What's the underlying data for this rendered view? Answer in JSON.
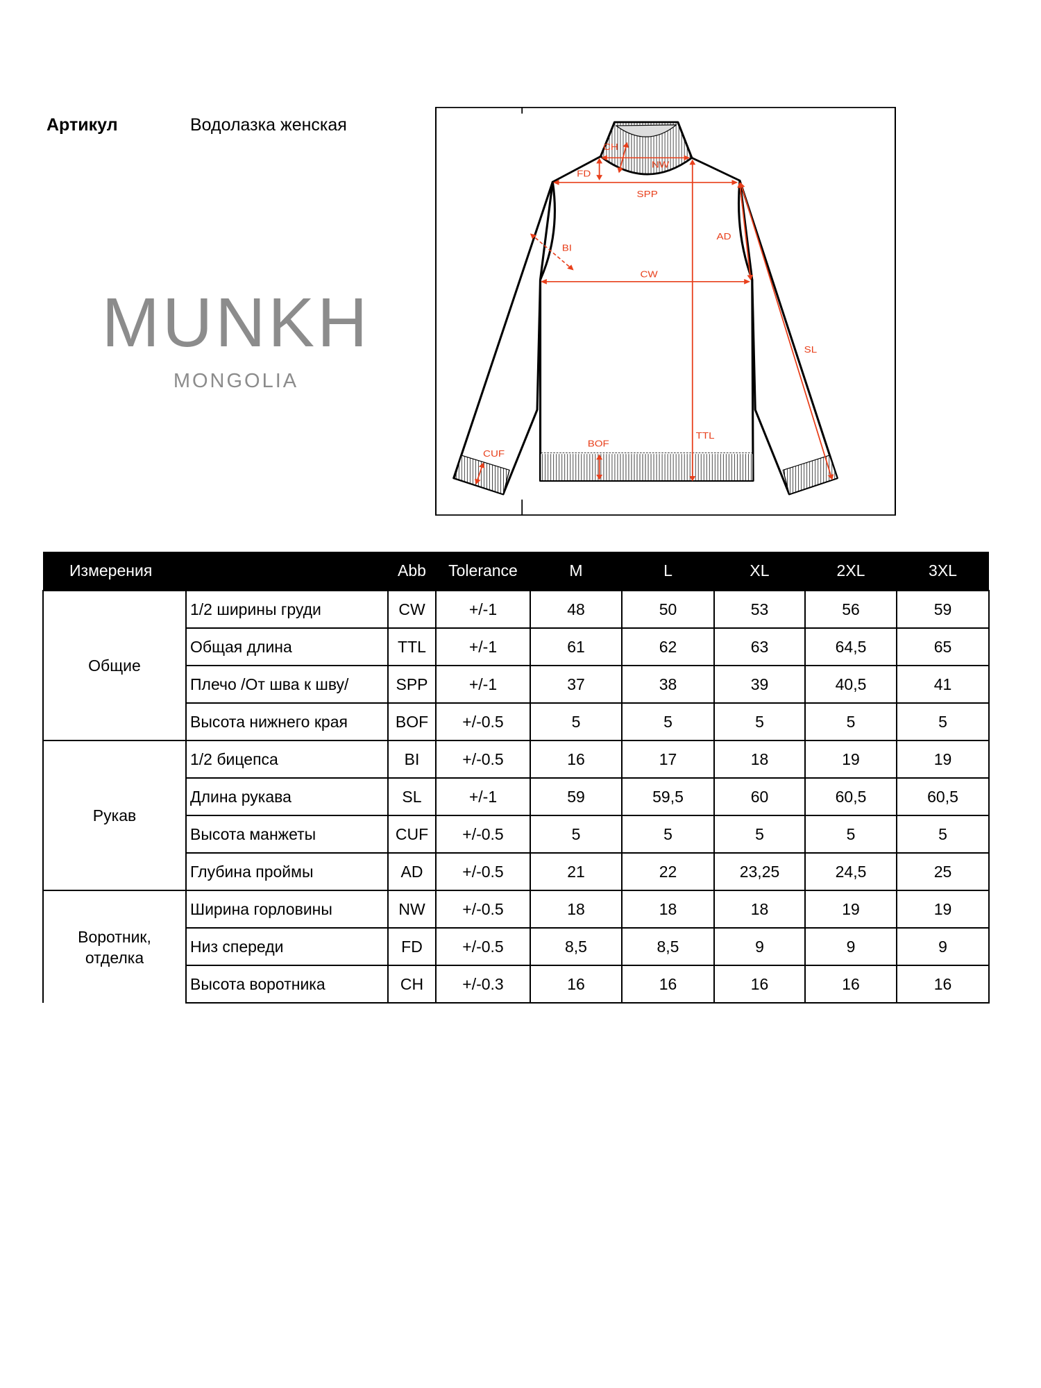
{
  "header": {
    "article_label": "Артикул",
    "article_value": "Водолазка женская"
  },
  "logo": {
    "main": "MUNKH",
    "sub": "MONGOLIA",
    "color": "#8c8c8c"
  },
  "diagram": {
    "accent_color": "#e8401c",
    "labels": {
      "CH": "CH",
      "NW": "NW",
      "FD": "FD",
      "SPP": "SPP",
      "BI": "BI",
      "CW": "CW",
      "AD": "AD",
      "SL": "SL",
      "TTL": "TTL",
      "BOF": "BOF",
      "CUF": "CUF"
    }
  },
  "table": {
    "headers": [
      "Измерения",
      "",
      "Abb",
      "Tolerance",
      "M",
      "L",
      "XL",
      "2XL",
      "3XL"
    ],
    "groups": [
      {
        "name": "Общие",
        "rows": [
          {
            "name": "1/2 ширины груди",
            "abb": "CW",
            "tol": "+/-1",
            "values": [
              "48",
              "50",
              "53",
              "56",
              "59"
            ]
          },
          {
            "name": "Общая длина",
            "abb": "TTL",
            "tol": "+/-1",
            "values": [
              "61",
              "62",
              "63",
              "64,5",
              "65"
            ]
          },
          {
            "name": "Плечо /От шва к шву/",
            "abb": "SPP",
            "tol": "+/-1",
            "values": [
              "37",
              "38",
              "39",
              "40,5",
              "41"
            ]
          },
          {
            "name": "Высота нижнего края",
            "abb": "BOF",
            "tol": "+/-0.5",
            "values": [
              "5",
              "5",
              "5",
              "5",
              "5"
            ]
          }
        ]
      },
      {
        "name": "Рукав",
        "rows": [
          {
            "name": "1/2 бицепса",
            "abb": "BI",
            "tol": "+/-0.5",
            "values": [
              "16",
              "17",
              "18",
              "19",
              "19"
            ]
          },
          {
            "name": "Длина рукава",
            "abb": "SL",
            "tol": "+/-1",
            "values": [
              "59",
              "59,5",
              "60",
              "60,5",
              "60,5"
            ]
          },
          {
            "name": "Высота манжеты",
            "abb": "CUF",
            "tol": "+/-0.5",
            "values": [
              "5",
              "5",
              "5",
              "5",
              "5"
            ]
          },
          {
            "name": "Глубина проймы",
            "abb": "AD",
            "tol": "+/-0.5",
            "values": [
              "21",
              "22",
              "23,25",
              "24,5",
              "25"
            ]
          }
        ]
      },
      {
        "name": "Воротник, отделка",
        "rows": [
          {
            "name": "Ширина горловины",
            "abb": "NW",
            "tol": "+/-0.5",
            "values": [
              "18",
              "18",
              "18",
              "19",
              "19"
            ]
          },
          {
            "name": "Низ спереди",
            "abb": "FD",
            "tol": "+/-0.5",
            "values": [
              "8,5",
              "8,5",
              "9",
              "9",
              "9"
            ]
          },
          {
            "name": "Высота воротника",
            "abb": "CH",
            "tol": "+/-0.3",
            "values": [
              "16",
              "16",
              "16",
              "16",
              "16"
            ]
          }
        ]
      }
    ]
  }
}
